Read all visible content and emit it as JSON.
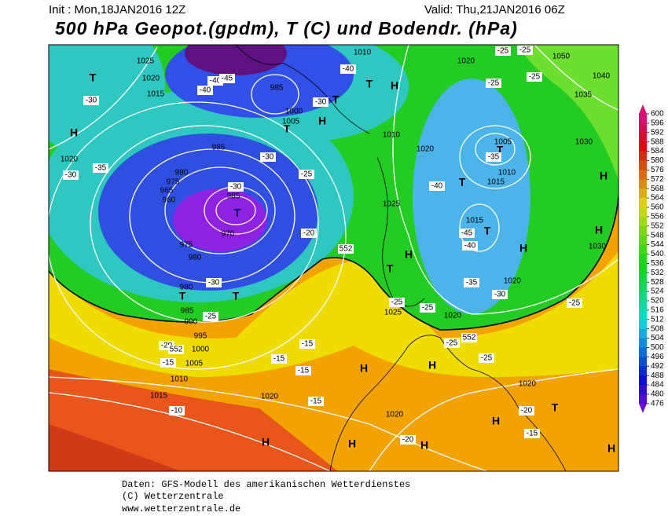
{
  "header": {
    "init": "Init : Mon,18JAN2016 12Z",
    "valid": "Valid: Thu,21JAN2016 06Z",
    "title": "500 hPa Geopot.(gpdm), T (C) und Bodendr. (hPa)"
  },
  "colorbar": {
    "values": [
      600,
      596,
      592,
      588,
      584,
      580,
      576,
      572,
      568,
      564,
      560,
      556,
      552,
      548,
      544,
      540,
      536,
      532,
      528,
      524,
      520,
      516,
      512,
      508,
      504,
      500,
      496,
      492,
      488,
      484,
      480,
      476
    ]
  },
  "map": {
    "pressure_labels": [
      "1025",
      "1020",
      "1015",
      "1020",
      "985",
      "1000",
      "1005",
      "985",
      "980",
      "975",
      "965",
      "960",
      "985",
      "970",
      "975",
      "980",
      "980",
      "985",
      "990",
      "995",
      "1000",
      "1005",
      "1010",
      "1015",
      "1020",
      "1010",
      "1010",
      "1020",
      "1020",
      "1050",
      "1040",
      "1035",
      "1030",
      "1005",
      "1010",
      "1015",
      "1025",
      "1015",
      "1030",
      "1020",
      "1025",
      "1020",
      "1020",
      "1020"
    ],
    "centers": [
      "T",
      "H",
      "T",
      "H",
      "H",
      "T",
      "T",
      "T",
      "T",
      "H",
      "H",
      "H",
      "T",
      "H",
      "H",
      "H",
      "T",
      "H",
      "H",
      "H",
      "H",
      "T",
      "H",
      "T",
      "T",
      "T"
    ],
    "temperature_labels": [
      "-30",
      "-35",
      "-30",
      "-40",
      "-40",
      "-45",
      "-30",
      "-30",
      "-25",
      "-20",
      "-30",
      "-25",
      "-20",
      "-15",
      "-15",
      "-15",
      "-15",
      "-10",
      "-15",
      "-20",
      "-40",
      "-45",
      "-40",
      "-35",
      "-30",
      "-25",
      "-25",
      "-20",
      "-15",
      "-25",
      "-25",
      "-25",
      "-25",
      "-35",
      "-40",
      "-25",
      "-25",
      "-25",
      "-30"
    ],
    "contour_labels": [
      "552",
      "552",
      "552"
    ]
  },
  "footer": {
    "source": "Daten: GFS-Modell des amerikanischen Wetterdienstes",
    "copyright": "(C) Wetterzentrale",
    "url": "www.wetterzentrale.de"
  }
}
